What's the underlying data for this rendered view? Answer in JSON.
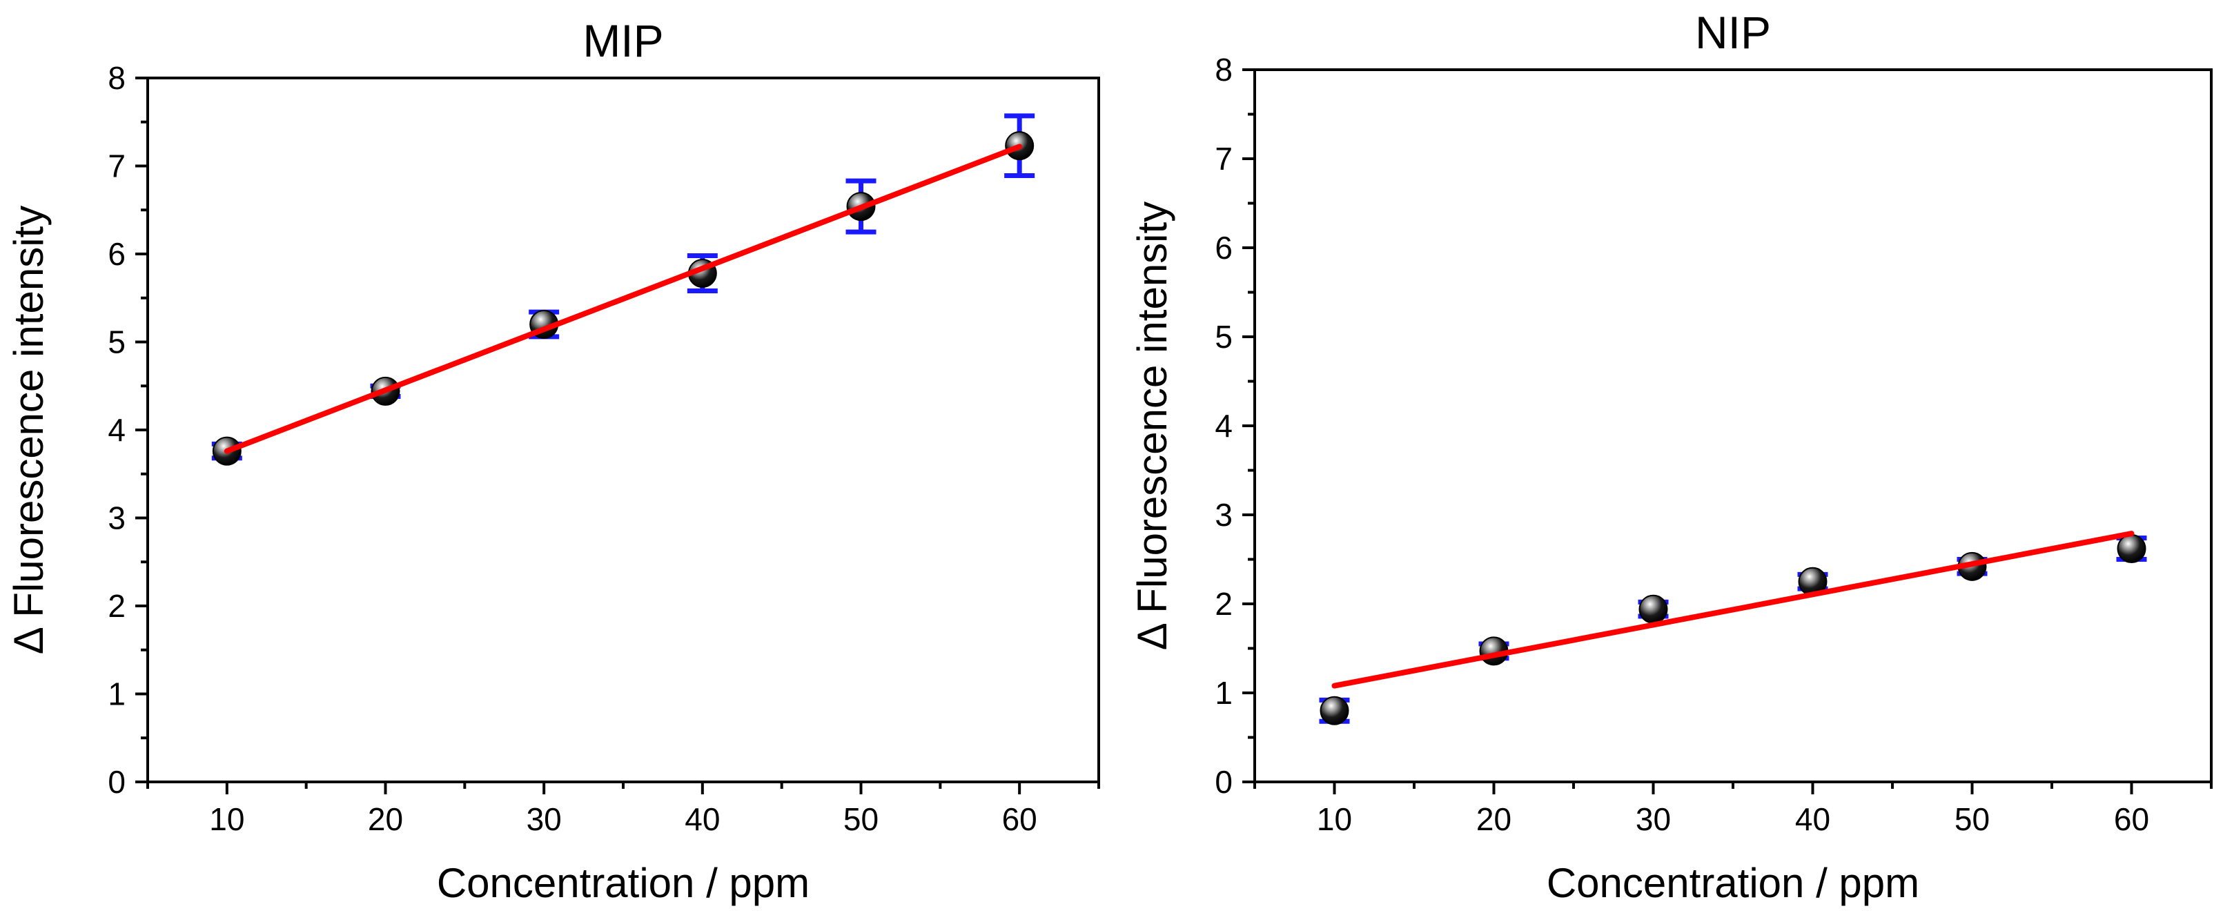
{
  "chart_data": [
    {
      "type": "scatter",
      "title": "MIP",
      "xlabel": "Concentration / ppm",
      "ylabel": "Δ Fluorescence intensity",
      "xlim": [
        5,
        65
      ],
      "ylim": [
        0,
        8
      ],
      "xticks": [
        10,
        20,
        30,
        40,
        50,
        60
      ],
      "yticks": [
        0,
        1,
        2,
        3,
        4,
        5,
        6,
        7,
        8
      ],
      "x": [
        10,
        20,
        30,
        40,
        50,
        60
      ],
      "y": [
        3.76,
        4.44,
        5.2,
        5.78,
        6.54,
        7.23
      ],
      "error": [
        0.08,
        0.06,
        0.14,
        0.2,
        0.29,
        0.34
      ],
      "fit_line": {
        "x": [
          10,
          60
        ],
        "y": [
          3.76,
          7.22
        ]
      },
      "colors": {
        "marker": "#000000",
        "error_bar": "#1a1aff",
        "fit": "#ff0000"
      }
    },
    {
      "type": "scatter",
      "title": "NIP",
      "xlabel": "Concentration / ppm",
      "ylabel": "Δ Fluorescence intensity",
      "xlim": [
        5,
        65
      ],
      "ylim": [
        0,
        8
      ],
      "xticks": [
        10,
        20,
        30,
        40,
        50,
        60
      ],
      "yticks": [
        0,
        1,
        2,
        3,
        4,
        5,
        6,
        7,
        8
      ],
      "x": [
        10,
        20,
        30,
        40,
        50,
        60
      ],
      "y": [
        0.8,
        1.47,
        1.94,
        2.25,
        2.42,
        2.62
      ],
      "error": [
        0.12,
        0.08,
        0.08,
        0.08,
        0.08,
        0.12
      ],
      "fit_line": {
        "x": [
          10,
          60
        ],
        "y": [
          1.08,
          2.79
        ]
      },
      "colors": {
        "marker": "#000000",
        "error_bar": "#1a1aff",
        "fit": "#ff0000"
      }
    }
  ]
}
